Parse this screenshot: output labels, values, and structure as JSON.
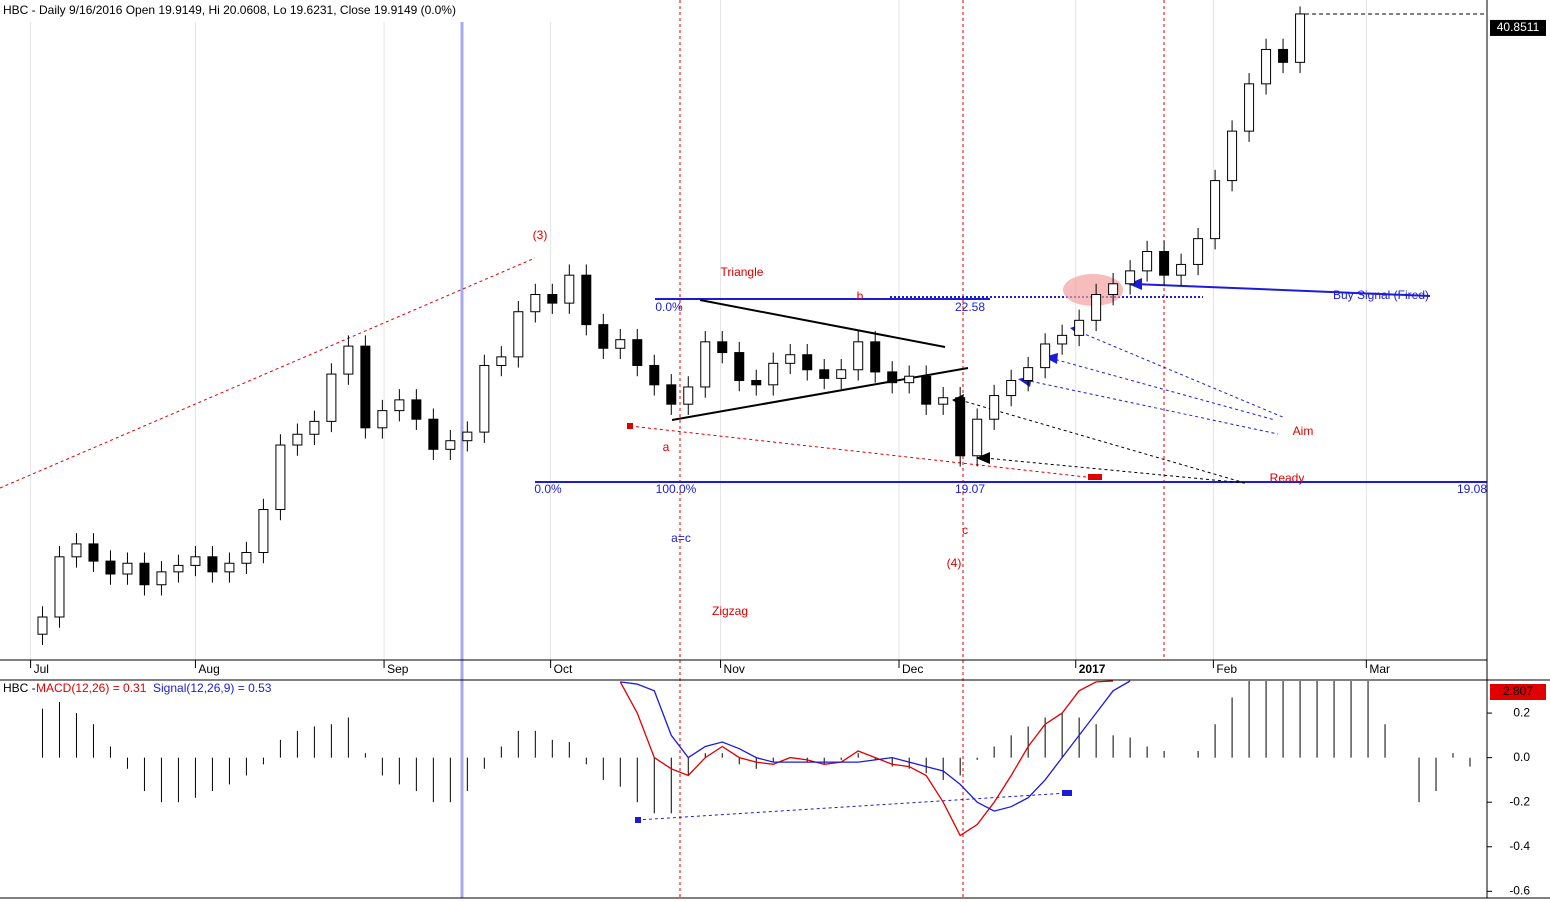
{
  "chart_data": [
    {
      "type": "candlestick",
      "title": "HBC - Daily 9/16/2016 Open 19.9149, Hi 20.0608, Lo 19.6231, Close 19.9149 (0.0%)",
      "xlim": [
        -2.5,
        85
      ],
      "xticks": [
        {
          "value": -0.7,
          "label": "Jul"
        },
        {
          "value": 9,
          "label": "Aug"
        },
        {
          "value": 20.1,
          "label": "Sep"
        },
        {
          "value": 29.9,
          "label": "Oct"
        },
        {
          "value": 39.9,
          "label": "Nov"
        },
        {
          "value": 50.4,
          "label": "Dec"
        },
        {
          "value": 60.8,
          "label": "2017"
        },
        {
          "value": 68.9,
          "label": "Feb"
        },
        {
          "value": 77.9,
          "label": "Mar"
        }
      ],
      "ylim": [
        10.8,
        41.5
      ],
      "grid": true,
      "up_color": "#ffffff",
      "down_color": "#000000",
      "open": [
        12.0,
        12.8,
        15.6,
        16.2,
        15.4,
        14.8,
        15.3,
        14.3,
        14.9,
        15.2,
        15.6,
        14.9,
        15.3,
        15.8,
        17.8,
        20.8,
        21.3,
        21.9,
        24.1,
        25.4,
        21.6,
        22.4,
        22.9,
        22.0,
        20.6,
        21.0,
        21.4,
        24.5,
        24.9,
        27.0,
        27.8,
        27.4,
        28.7,
        26.4,
        25.3,
        25.7,
        24.5,
        23.6,
        22.7,
        23.5,
        25.6,
        25.1,
        23.8,
        23.6,
        24.6,
        25.0,
        24.3,
        23.9,
        24.3,
        25.6,
        24.2,
        23.7,
        24.0,
        22.7,
        23.0,
        20.3,
        22.0,
        23.1,
        23.8,
        24.4,
        25.5,
        25.9,
        26.6,
        27.8,
        28.3,
        28.9,
        29.8,
        28.7,
        29.2,
        30.4,
        33.1,
        35.4,
        37.6,
        39.2,
        38.6
      ],
      "high": [
        13.3,
        16.1,
        16.7,
        16.7,
        15.9,
        15.8,
        15.8,
        15.4,
        15.7,
        16.1,
        16.1,
        15.8,
        16.3,
        18.3,
        21.3,
        21.8,
        22.4,
        24.6,
        25.9,
        25.9,
        22.9,
        23.4,
        23.4,
        22.5,
        21.5,
        21.9,
        25.0,
        25.4,
        27.5,
        28.3,
        28.3,
        29.2,
        29.2,
        26.9,
        26.2,
        26.2,
        25.0,
        24.1,
        24.0,
        26.1,
        26.1,
        25.6,
        24.3,
        25.1,
        25.5,
        25.5,
        24.8,
        24.8,
        26.1,
        26.1,
        24.7,
        24.5,
        24.5,
        23.5,
        23.5,
        22.5,
        23.6,
        24.3,
        24.9,
        26.0,
        26.4,
        27.1,
        28.3,
        28.8,
        29.4,
        30.3,
        30.3,
        29.7,
        30.9,
        33.6,
        35.9,
        38.1,
        39.7,
        39.7,
        41.2
      ],
      "low": [
        11.5,
        12.3,
        15.1,
        14.9,
        14.3,
        14.3,
        13.8,
        13.8,
        14.4,
        14.7,
        14.4,
        14.4,
        14.8,
        15.3,
        17.3,
        20.3,
        20.8,
        21.4,
        23.6,
        21.1,
        21.1,
        21.9,
        21.5,
        20.1,
        20.1,
        20.5,
        20.9,
        24.0,
        24.4,
        26.5,
        26.9,
        26.9,
        25.9,
        24.8,
        24.8,
        24.0,
        23.1,
        22.2,
        22.2,
        23.0,
        24.6,
        23.3,
        23.1,
        23.1,
        24.1,
        23.8,
        23.4,
        23.4,
        23.8,
        23.7,
        23.2,
        23.2,
        22.2,
        22.2,
        19.8,
        19.8,
        21.5,
        22.6,
        23.3,
        23.9,
        25.0,
        25.4,
        26.1,
        27.3,
        27.8,
        28.4,
        28.2,
        28.2,
        28.7,
        29.9,
        32.6,
        34.9,
        37.1,
        38.1,
        38.1
      ],
      "close": [
        12.8,
        15.6,
        16.2,
        15.4,
        14.8,
        15.3,
        14.3,
        14.9,
        15.2,
        15.6,
        14.9,
        15.3,
        15.8,
        17.8,
        20.8,
        21.3,
        21.9,
        24.1,
        25.4,
        21.6,
        22.4,
        22.9,
        22.0,
        20.6,
        21.0,
        21.4,
        24.5,
        24.9,
        27.0,
        27.8,
        27.4,
        28.7,
        26.4,
        25.3,
        25.7,
        24.5,
        23.6,
        22.7,
        23.5,
        25.6,
        25.1,
        23.8,
        23.6,
        24.6,
        25.0,
        24.3,
        23.9,
        24.3,
        25.6,
        24.2,
        23.7,
        24.0,
        22.7,
        23.0,
        20.3,
        22.0,
        23.1,
        23.8,
        24.4,
        25.5,
        25.9,
        26.6,
        27.8,
        28.3,
        28.9,
        29.8,
        28.7,
        29.2,
        30.4,
        33.1,
        35.4,
        37.6,
        39.2,
        38.6,
        40.8511
      ],
      "annotations": [
        "(3)",
        "Triangle",
        "b",
        "0.0%",
        "22.58",
        "a",
        "0.0%",
        "100.0%",
        "19.07",
        "19.08",
        "a=c",
        "Zigzag",
        "c",
        "(4)",
        "Buy Signal (Fired)",
        "Aim",
        "Ready"
      ]
    },
    {
      "type": "macd",
      "title": "HBC -",
      "xlim": [
        -2.5,
        85
      ],
      "ylim": [
        -0.63,
        0.344
      ],
      "yticks": [
        0.2,
        {
          "value": 0,
          "label": "0.0"
        },
        -0.2,
        -0.4,
        -0.6
      ],
      "badge": 2.807,
      "histogram": [
        0.22,
        0.25,
        0.2,
        0.15,
        0.05,
        -0.05,
        -0.15,
        -0.2,
        -0.2,
        -0.18,
        -0.15,
        -0.12,
        -0.08,
        -0.03,
        0.08,
        0.12,
        0.14,
        0.15,
        0.18,
        0.02,
        -0.08,
        -0.12,
        -0.15,
        -0.2,
        -0.2,
        -0.15,
        -0.05,
        0.05,
        0.12,
        0.12,
        0.08,
        0.07,
        -0.03,
        -0.1,
        -0.13,
        -0.2,
        -0.25,
        -0.25,
        -0.08,
        0.02,
        0.02,
        -0.03,
        -0.05,
        -0.02,
        0.0,
        -0.02,
        -0.03,
        -0.01,
        0.02,
        -0.01,
        -0.04,
        -0.05,
        -0.07,
        -0.1,
        -0.08,
        -0.01,
        0.05,
        0.1,
        0.14,
        0.18,
        0.2,
        0.18,
        0.15,
        0.1,
        0.09,
        0.05,
        0.03,
        0.0,
        0.03,
        0.15,
        0.27,
        0.344,
        0.344,
        0.344,
        0.344,
        0.344,
        0.344,
        0.344,
        0.344,
        0.15,
        0.0,
        -0.2,
        -0.15,
        0.02,
        -0.04
      ],
      "series": [
        {
          "name": "MACD(12,26) = 0.31",
          "color": "#e00000",
          "values": [
            null,
            null,
            null,
            null,
            null,
            null,
            null,
            null,
            null,
            null,
            null,
            null,
            null,
            null,
            null,
            null,
            null,
            null,
            null,
            null,
            null,
            null,
            null,
            null,
            null,
            null,
            null,
            null,
            null,
            null,
            null,
            null,
            null,
            null,
            0.34,
            0.2,
            0.0,
            -0.05,
            -0.08,
            0.0,
            0.05,
            0.0,
            -0.02,
            -0.03,
            0.0,
            -0.01,
            -0.03,
            -0.02,
            0.03,
            0.0,
            -0.03,
            -0.04,
            -0.08,
            -0.2,
            -0.35,
            -0.3,
            -0.2,
            -0.08,
            0.05,
            0.15,
            0.2,
            0.3,
            0.34,
            0.344,
            null,
            null,
            null,
            null,
            null,
            null,
            null,
            null,
            null,
            null,
            null,
            null,
            null,
            null,
            null,
            null,
            null,
            null,
            null,
            null,
            null
          ]
        },
        {
          "name": "Signal(12,26,9) = 0.53",
          "color": "#1c1cd8",
          "values": [
            null,
            null,
            null,
            null,
            null,
            null,
            null,
            null,
            null,
            null,
            null,
            null,
            null,
            null,
            null,
            null,
            null,
            null,
            null,
            null,
            null,
            null,
            null,
            null,
            null,
            null,
            null,
            null,
            null,
            null,
            null,
            null,
            null,
            null,
            0.34,
            0.33,
            0.3,
            0.1,
            0.0,
            0.05,
            0.07,
            0.04,
            0.0,
            -0.02,
            -0.02,
            -0.02,
            -0.02,
            -0.02,
            -0.02,
            -0.01,
            0.0,
            -0.02,
            -0.04,
            -0.06,
            -0.12,
            -0.2,
            -0.24,
            -0.22,
            -0.18,
            -0.1,
            0.0,
            0.1,
            0.2,
            0.3,
            0.344,
            null,
            null,
            null,
            null,
            null,
            null,
            null,
            null,
            null,
            null,
            null,
            null,
            null,
            null,
            null,
            null,
            null,
            null,
            null,
            null
          ]
        }
      ]
    }
  ]
}
